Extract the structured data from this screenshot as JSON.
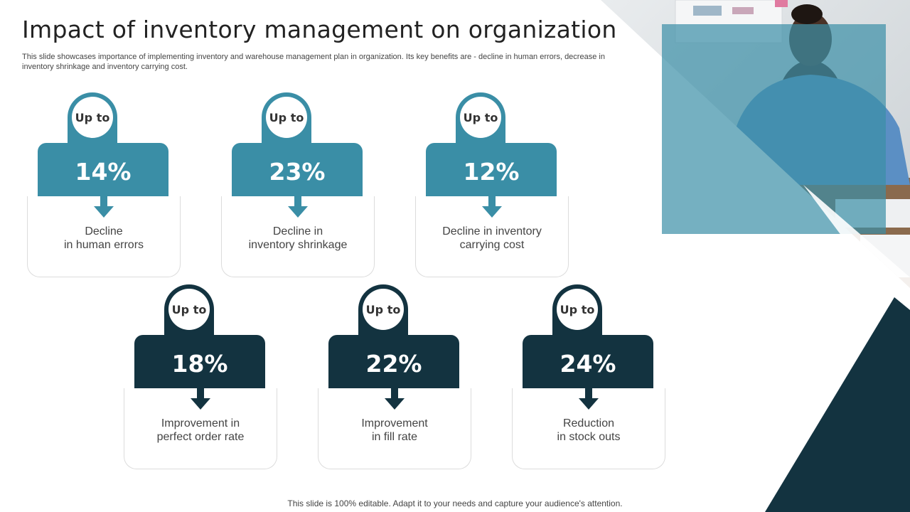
{
  "title": "Impact of inventory management on organization",
  "subtitle": "This slide showcases importance of implementing inventory and warehouse management plan in organization. Its key benefits are - decline in human errors, decrease in inventory shrinkage and inventory carrying cost.",
  "cards": [
    {
      "prefix": "Up to",
      "percent": "14%",
      "label": "Decline\nin human errors"
    },
    {
      "prefix": "Up to",
      "percent": "23%",
      "label": "Decline in\ninventory  shrinkage"
    },
    {
      "prefix": "Up to",
      "percent": "12%",
      "label": "Decline in inventory\ncarrying cost"
    },
    {
      "prefix": "Up to",
      "percent": "18%",
      "label": "Improvement  in\nperfect order rate"
    },
    {
      "prefix": "Up to",
      "percent": "22%",
      "label": "Improvement\nin fill rate"
    },
    {
      "prefix": "Up to",
      "percent": "24%",
      "label": "Reduction\nin stock outs"
    }
  ],
  "footer": "This slide is 100% editable. Adapt it to your needs and capture your audience's attention.",
  "colors": {
    "teal": "#3a8ea6",
    "navy": "#133340",
    "text": "#444444"
  }
}
